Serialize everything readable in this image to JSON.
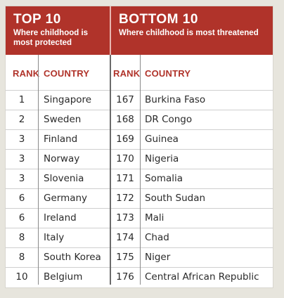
{
  "top": {
    "title": "TOP 10",
    "subtitle": "Where childhood is most protected"
  },
  "bottom": {
    "title": "BOTTOM 10",
    "subtitle": "Where childhood is most threatened"
  },
  "columns": {
    "rank": "RANK",
    "country": "COUNTRY"
  },
  "top_rows": [
    {
      "rank": "1",
      "country": "Singapore"
    },
    {
      "rank": "2",
      "country": "Sweden"
    },
    {
      "rank": "3",
      "country": "Finland"
    },
    {
      "rank": "3",
      "country": "Norway"
    },
    {
      "rank": "3",
      "country": "Slovenia"
    },
    {
      "rank": "6",
      "country": "Germany"
    },
    {
      "rank": "6",
      "country": "Ireland"
    },
    {
      "rank": "8",
      "country": "Italy"
    },
    {
      "rank": "8",
      "country": "South Korea"
    },
    {
      "rank": "10",
      "country": "Belgium"
    }
  ],
  "bottom_rows": [
    {
      "rank": "167",
      "country": "Burkina Faso"
    },
    {
      "rank": "168",
      "country": "DR Congo"
    },
    {
      "rank": "169",
      "country": "Guinea"
    },
    {
      "rank": "170",
      "country": "Nigeria"
    },
    {
      "rank": "171",
      "country": "Somalia"
    },
    {
      "rank": "172",
      "country": "South Sudan"
    },
    {
      "rank": "173",
      "country": "Mali"
    },
    {
      "rank": "174",
      "country": "Chad"
    },
    {
      "rank": "175",
      "country": "Niger"
    },
    {
      "rank": "176",
      "country": "Central African Republic"
    }
  ],
  "colors": {
    "header_bg": "#b0332a",
    "column_header_text": "#b0332a",
    "body_text": "#2a2a2a"
  }
}
